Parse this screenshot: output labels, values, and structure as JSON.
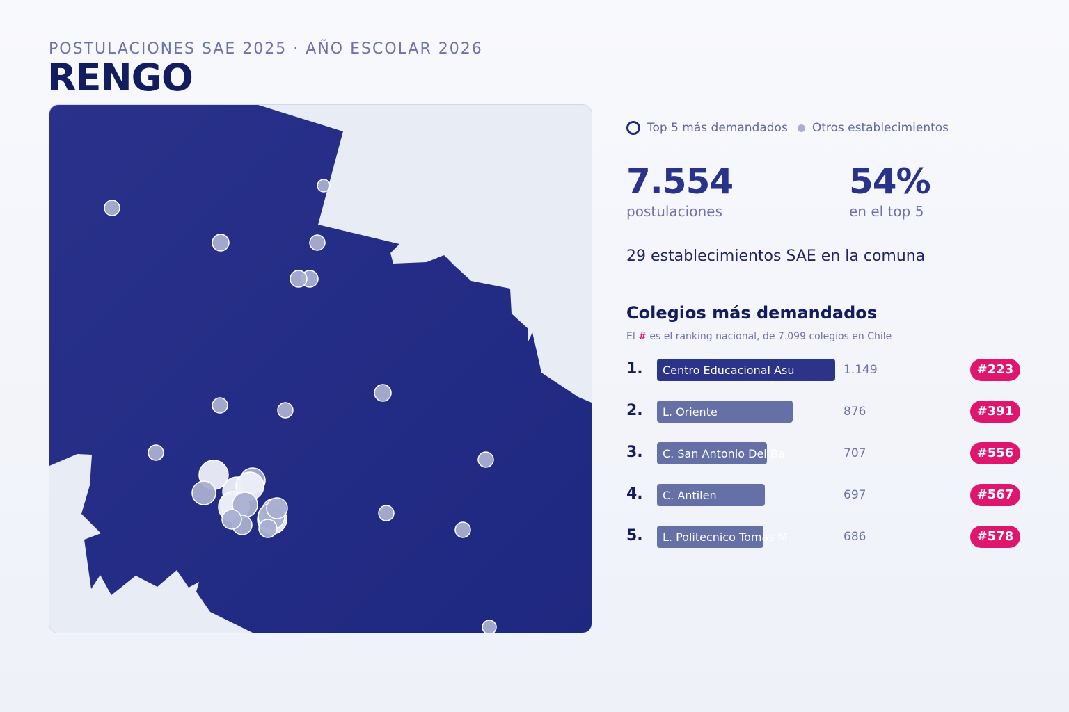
{
  "header": {
    "subtitle": "POSTULACIONES SAE 2025 · AÑO ESCOLAR 2026",
    "title": "RENGO"
  },
  "legend": {
    "top5": "Top 5 más demandados",
    "others": "Otros establecimientos"
  },
  "kpis": [
    {
      "value": "7.554",
      "label": "postulaciones"
    },
    {
      "value": "54%",
      "label": "en el top 5"
    }
  ],
  "summary": "29 establecimientos SAE en la comuna",
  "ranking": {
    "title": "Colegios más demandados",
    "note_before": "El",
    "note_hash": "#",
    "note_after": "es el ranking nacional, de 7.099 colegios en Chile",
    "items": [
      {
        "position": "1.",
        "name": "Centro Educacional Asu",
        "applications": "1.149",
        "rank": "#223"
      },
      {
        "position": "2.",
        "name": "L. Oriente",
        "applications": "876",
        "rank": "#391"
      },
      {
        "position": "3.",
        "name": "C. San Antonio Del Ba",
        "applications": "707",
        "rank": "#556"
      },
      {
        "position": "4.",
        "name": "C. Antilen",
        "applications": "697",
        "rank": "#567"
      },
      {
        "position": "5.",
        "name": "L. Politecnico Tomas M",
        "applications": "686",
        "rank": "#578"
      }
    ]
  },
  "colors": {
    "commune_fill": "#262f86",
    "background": "#e8ecf5",
    "other_school": "#a9afd0",
    "rank_badge": "#e0166e"
  }
}
